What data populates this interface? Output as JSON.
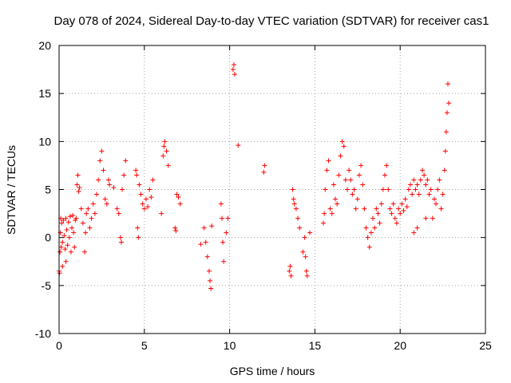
{
  "chart_data": {
    "type": "scatter",
    "title": "Day 078 of 2024, Sidereal Day-to-day VTEC variation (SDTVAR) for receiver cas1",
    "xlabel": "GPS time / hours",
    "ylabel": "SDTVAR / TECUs",
    "xlim": [
      0,
      25
    ],
    "ylim": [
      -10,
      20
    ],
    "xticks": [
      0,
      5,
      10,
      15,
      20,
      25
    ],
    "yticks": [
      -10,
      -5,
      0,
      5,
      10,
      15,
      20
    ],
    "grid": true,
    "marker": "+",
    "color": "#ff0000",
    "series": [
      {
        "name": "SDTVAR",
        "points": [
          [
            0.0,
            -3.5
          ],
          [
            0.03,
            -3.7
          ],
          [
            0.05,
            -1.5
          ],
          [
            0.08,
            0.5
          ],
          [
            0.1,
            2.0
          ],
          [
            0.12,
            -1.0
          ],
          [
            0.15,
            1.5
          ],
          [
            0.2,
            -0.5
          ],
          [
            0.25,
            1.8
          ],
          [
            0.3,
            0.2
          ],
          [
            0.35,
            -1.2
          ],
          [
            0.4,
            2.0
          ],
          [
            0.45,
            0.8
          ],
          [
            0.5,
            -0.8
          ],
          [
            0.55,
            1.6
          ],
          [
            0.6,
            0.0
          ],
          [
            0.65,
            2.2
          ],
          [
            0.7,
            -1.5
          ],
          [
            0.75,
            1.0
          ],
          [
            0.8,
            2.3
          ],
          [
            0.85,
            0.5
          ],
          [
            0.9,
            -1.0
          ],
          [
            0.95,
            1.8
          ],
          [
            1.0,
            2.0
          ],
          [
            1.05,
            5.5
          ],
          [
            1.1,
            6.5
          ],
          [
            1.15,
            4.8
          ],
          [
            1.2,
            5.2
          ],
          [
            1.3,
            3.0
          ],
          [
            1.4,
            1.5
          ],
          [
            1.5,
            -1.5
          ],
          [
            1.55,
            0.5
          ],
          [
            1.6,
            2.5
          ],
          [
            1.7,
            3.0
          ],
          [
            1.8,
            1.0
          ],
          [
            1.9,
            2.0
          ],
          [
            2.0,
            3.5
          ],
          [
            2.1,
            2.5
          ],
          [
            2.2,
            4.5
          ],
          [
            2.3,
            6.0
          ],
          [
            2.4,
            8.0
          ],
          [
            2.5,
            9.0
          ],
          [
            2.6,
            7.0
          ],
          [
            2.7,
            4.0
          ],
          [
            2.8,
            3.5
          ],
          [
            2.9,
            6.0
          ],
          [
            2.95,
            5.5
          ],
          [
            3.2,
            5.2
          ],
          [
            3.4,
            3.0
          ],
          [
            3.5,
            2.5
          ],
          [
            3.6,
            0.0
          ],
          [
            3.65,
            -0.5
          ],
          [
            3.7,
            5.0
          ],
          [
            3.8,
            6.5
          ],
          [
            3.9,
            8.0
          ],
          [
            4.5,
            7.0
          ],
          [
            4.55,
            6.5
          ],
          [
            4.6,
            1.0
          ],
          [
            4.65,
            0.0
          ],
          [
            4.7,
            5.5
          ],
          [
            4.8,
            4.5
          ],
          [
            4.9,
            3.5
          ],
          [
            5.0,
            3.0
          ],
          [
            5.1,
            4.0
          ],
          [
            5.2,
            3.2
          ],
          [
            5.3,
            5.0
          ],
          [
            5.4,
            4.2
          ],
          [
            5.5,
            6.0
          ],
          [
            6.0,
            2.5
          ],
          [
            6.1,
            8.5
          ],
          [
            6.15,
            9.5
          ],
          [
            6.2,
            10.0
          ],
          [
            6.3,
            9.0
          ],
          [
            6.4,
            7.5
          ],
          [
            6.8,
            1.0
          ],
          [
            6.85,
            0.7
          ],
          [
            6.9,
            4.5
          ],
          [
            7.0,
            4.2
          ],
          [
            7.1,
            3.5
          ],
          [
            8.5,
            1.0
          ],
          [
            8.6,
            -0.5
          ],
          [
            8.7,
            -2.0
          ],
          [
            8.8,
            -3.5
          ],
          [
            8.85,
            -4.5
          ],
          [
            8.9,
            -5.3
          ],
          [
            8.95,
            1.2
          ],
          [
            9.5,
            3.5
          ],
          [
            9.55,
            2.0
          ],
          [
            9.6,
            -0.5
          ],
          [
            9.65,
            -2.5
          ],
          [
            9.8,
            0.5
          ],
          [
            9.9,
            2.0
          ],
          [
            10.2,
            17.5
          ],
          [
            10.25,
            18.0
          ],
          [
            10.3,
            17.0
          ],
          [
            10.5,
            9.6
          ],
          [
            12.0,
            6.8
          ],
          [
            12.05,
            7.5
          ],
          [
            13.5,
            -3.5
          ],
          [
            13.55,
            -3.0
          ],
          [
            13.6,
            -4.0
          ],
          [
            13.7,
            5.0
          ],
          [
            13.75,
            4.0
          ],
          [
            13.8,
            3.5
          ],
          [
            13.9,
            3.0
          ],
          [
            14.0,
            2.0
          ],
          [
            14.1,
            1.0
          ],
          [
            14.3,
            -1.5
          ],
          [
            14.4,
            0.0
          ],
          [
            14.45,
            -2.0
          ],
          [
            14.5,
            -3.5
          ],
          [
            14.55,
            -4.0
          ],
          [
            14.7,
            0.5
          ],
          [
            15.5,
            1.5
          ],
          [
            15.55,
            2.5
          ],
          [
            15.6,
            5.0
          ],
          [
            15.7,
            7.0
          ],
          [
            15.8,
            8.0
          ],
          [
            15.9,
            3.0
          ],
          [
            16.0,
            2.5
          ],
          [
            16.1,
            5.5
          ],
          [
            16.2,
            4.0
          ],
          [
            16.3,
            3.5
          ],
          [
            16.4,
            6.5
          ],
          [
            16.5,
            8.5
          ],
          [
            16.6,
            10.0
          ],
          [
            16.7,
            9.5
          ],
          [
            16.8,
            6.0
          ],
          [
            16.9,
            5.0
          ],
          [
            17.0,
            7.0
          ],
          [
            17.1,
            6.0
          ],
          [
            17.2,
            4.5
          ],
          [
            17.3,
            5.0
          ],
          [
            17.4,
            3.0
          ],
          [
            17.5,
            4.0
          ],
          [
            17.6,
            6.5
          ],
          [
            17.7,
            7.5
          ],
          [
            17.8,
            5.5
          ],
          [
            17.9,
            3.0
          ],
          [
            18.0,
            1.0
          ],
          [
            18.1,
            0.0
          ],
          [
            18.2,
            -1.0
          ],
          [
            18.3,
            0.5
          ],
          [
            18.4,
            2.0
          ],
          [
            18.5,
            1.0
          ],
          [
            18.6,
            3.0
          ],
          [
            18.7,
            2.5
          ],
          [
            18.8,
            1.5
          ],
          [
            18.9,
            3.5
          ],
          [
            19.0,
            5.0
          ],
          [
            19.1,
            6.5
          ],
          [
            19.2,
            7.5
          ],
          [
            19.3,
            5.0
          ],
          [
            19.4,
            3.0
          ],
          [
            19.5,
            2.5
          ],
          [
            19.6,
            3.5
          ],
          [
            19.7,
            2.0
          ],
          [
            19.8,
            1.5
          ],
          [
            19.9,
            3.0
          ],
          [
            20.0,
            2.5
          ],
          [
            20.1,
            3.5
          ],
          [
            20.2,
            2.8
          ],
          [
            20.3,
            4.0
          ],
          [
            20.4,
            3.2
          ],
          [
            20.5,
            5.0
          ],
          [
            20.6,
            5.5
          ],
          [
            20.7,
            4.5
          ],
          [
            20.8,
            6.0
          ],
          [
            20.9,
            5.0
          ],
          [
            21.0,
            5.5
          ],
          [
            21.1,
            4.5
          ],
          [
            21.2,
            6.0
          ],
          [
            21.3,
            7.0
          ],
          [
            21.4,
            6.5
          ],
          [
            21.5,
            5.5
          ],
          [
            21.6,
            6.0
          ],
          [
            21.7,
            4.5
          ],
          [
            21.8,
            5.0
          ],
          [
            21.9,
            2.0
          ],
          [
            22.0,
            4.0
          ],
          [
            22.1,
            3.5
          ],
          [
            22.2,
            5.0
          ],
          [
            22.3,
            6.0
          ],
          [
            22.4,
            3.0
          ],
          [
            22.5,
            4.5
          ],
          [
            22.6,
            7.0
          ],
          [
            22.65,
            9.0
          ],
          [
            22.7,
            11.0
          ],
          [
            22.75,
            13.0
          ],
          [
            22.8,
            16.0
          ],
          [
            22.85,
            14.0
          ],
          [
            20.8,
            0.5
          ],
          [
            21.0,
            1.0
          ],
          [
            21.5,
            2.0
          ],
          [
            0.2,
            -3.0
          ],
          [
            0.4,
            -2.5
          ],
          [
            8.3,
            -0.7
          ]
        ]
      }
    ]
  }
}
